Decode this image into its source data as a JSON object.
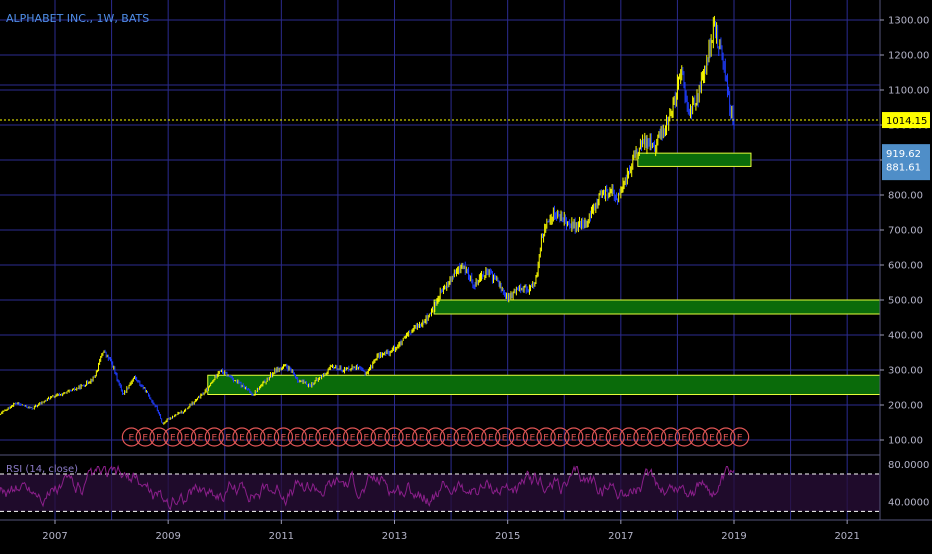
{
  "header": {
    "title": "ALPHABET INC., 1W, BATS"
  },
  "colors": {
    "background": "#000000",
    "grid": "#2b2b8f",
    "candle_up": "#ffff00",
    "candle_down": "#1f3cff",
    "zone_fill": "#0a6b0a",
    "zone_border": "#e6ff3a",
    "earnings_marker": "#e05555",
    "rsi_line": "#8a1f8a",
    "rsi_fill": "#2a0f3a",
    "rsi_band": "#ffffff",
    "price_line": "#ffff00",
    "blue_tag": "#4f8ec8"
  },
  "chart_data": {
    "type": "candlestick",
    "title": "ALPHABET INC., 1W, BATS",
    "y_axis": {
      "ticks": [
        "1300.00",
        "1200.00",
        "1100.00",
        "1000.00",
        "900.00",
        "800.00",
        "700.00",
        "600.00",
        "500.00",
        "400.00",
        "300.00",
        "200.00",
        "100.00"
      ],
      "scale": "linear",
      "range": [
        70,
        1340
      ]
    },
    "x_axis": {
      "ticks": [
        "2007",
        "2009",
        "2011",
        "2013",
        "2015",
        "2017",
        "2019",
        "2021"
      ]
    },
    "current_price": {
      "value": 1014.15,
      "label": "1014.15"
    },
    "zone_labels": [
      "919.62",
      "881.61"
    ],
    "price_path": [
      [
        2006.0,
        170
      ],
      [
        2006.3,
        205
      ],
      [
        2006.6,
        190
      ],
      [
        2006.9,
        220
      ],
      [
        2007.2,
        235
      ],
      [
        2007.5,
        255
      ],
      [
        2007.7,
        280
      ],
      [
        2007.85,
        355
      ],
      [
        2008.0,
        320
      ],
      [
        2008.2,
        230
      ],
      [
        2008.4,
        280
      ],
      [
        2008.6,
        240
      ],
      [
        2008.8,
        190
      ],
      [
        2008.9,
        145
      ],
      [
        2009.0,
        160
      ],
      [
        2009.3,
        185
      ],
      [
        2009.5,
        215
      ],
      [
        2009.7,
        245
      ],
      [
        2009.9,
        300
      ],
      [
        2010.1,
        280
      ],
      [
        2010.3,
        255
      ],
      [
        2010.5,
        230
      ],
      [
        2010.7,
        265
      ],
      [
        2010.9,
        300
      ],
      [
        2011.1,
        310
      ],
      [
        2011.3,
        270
      ],
      [
        2011.5,
        255
      ],
      [
        2011.7,
        280
      ],
      [
        2011.9,
        310
      ],
      [
        2012.1,
        300
      ],
      [
        2012.3,
        310
      ],
      [
        2012.5,
        290
      ],
      [
        2012.7,
        340
      ],
      [
        2012.9,
        350
      ],
      [
        2013.1,
        375
      ],
      [
        2013.3,
        410
      ],
      [
        2013.5,
        440
      ],
      [
        2013.6,
        450
      ],
      [
        2013.8,
        515
      ],
      [
        2014.0,
        560
      ],
      [
        2014.2,
        600
      ],
      [
        2014.4,
        545
      ],
      [
        2014.6,
        580
      ],
      [
        2014.8,
        560
      ],
      [
        2015.0,
        500
      ],
      [
        2015.2,
        540
      ],
      [
        2015.4,
        530
      ],
      [
        2015.5,
        560
      ],
      [
        2015.6,
        680
      ],
      [
        2015.8,
        750
      ],
      [
        2016.0,
        730
      ],
      [
        2016.2,
        710
      ],
      [
        2016.4,
        720
      ],
      [
        2016.6,
        790
      ],
      [
        2016.8,
        810
      ],
      [
        2016.95,
        790
      ],
      [
        2017.1,
        850
      ],
      [
        2017.3,
        930
      ],
      [
        2017.5,
        960
      ],
      [
        2017.6,
        940
      ],
      [
        2017.8,
        1000
      ],
      [
        2017.95,
        1070
      ],
      [
        2018.05,
        1170
      ],
      [
        2018.2,
        1030
      ],
      [
        2018.4,
        1100
      ],
      [
        2018.55,
        1200
      ],
      [
        2018.65,
        1280
      ],
      [
        2018.75,
        1220
      ],
      [
        2018.85,
        1150
      ],
      [
        2018.95,
        1030
      ],
      [
        2019.0,
        1014
      ]
    ],
    "zones": [
      {
        "y_top": 919.62,
        "y_bottom": 881.61,
        "x_start": 2017.3,
        "x_end": 2019.3
      },
      {
        "y_top": 500,
        "y_bottom": 460,
        "x_start": 2013.7,
        "x_end": 2021.7
      },
      {
        "y_top": 285,
        "y_bottom": 230,
        "x_start": 2009.7,
        "x_end": 2021.7
      }
    ],
    "earnings": {
      "label": "E",
      "count": 45,
      "x_start": 2008.35,
      "x_end": 2019.1
    },
    "rsi": {
      "label": "RSI (14, close)",
      "ticks": [
        "80.0000",
        "40.0000"
      ],
      "upper": 70,
      "lower": 30,
      "range": [
        25,
        85
      ]
    }
  }
}
